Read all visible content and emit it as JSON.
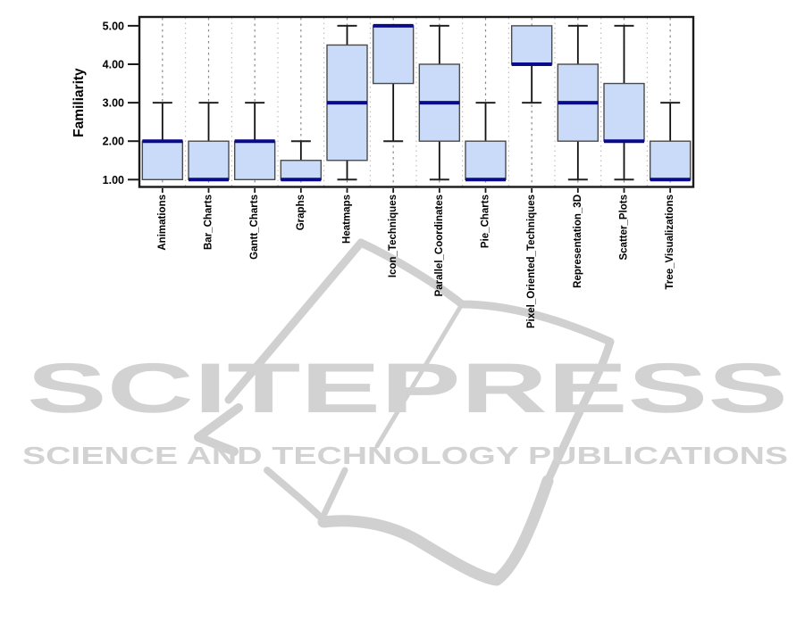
{
  "watermark": {
    "brand": "SCITEPRESS",
    "subtitle": "SCIENCE AND TECHNOLOGY PUBLICATIONS",
    "color": "#d2d2d2",
    "ribbon_color": "#d0d0d0"
  },
  "chart_data": {
    "type": "boxplot",
    "title": "",
    "xlabel": "",
    "ylabel": "Familiarity",
    "ylim": [
      1,
      5
    ],
    "yticks": [
      "1.00",
      "2.00",
      "3.00",
      "4.00",
      "5.00"
    ],
    "grid": "vertical dotted gridlines at category centers and midpoints",
    "legend_position": "none",
    "categories": [
      "Animations",
      "Bar_Charts",
      "Gantt_Charts",
      "Graphs",
      "Heatmaps",
      "Icon_Techniques",
      "Parallel_Coordinates",
      "Pie_Charts",
      "Pixel_Oriented_Techniques",
      "Representation_3D",
      "Scatter_Plots",
      "Tree_Visualizations"
    ],
    "boxes": [
      {
        "label": "Animations",
        "low": 1,
        "q1": 1,
        "median": 2,
        "q3": 2,
        "high": 3
      },
      {
        "label": "Bar_Charts",
        "low": 1,
        "q1": 1,
        "median": 1,
        "q3": 2,
        "high": 3
      },
      {
        "label": "Gantt_Charts",
        "low": 1,
        "q1": 1,
        "median": 2,
        "q3": 2,
        "high": 3
      },
      {
        "label": "Graphs",
        "low": 1,
        "q1": 1,
        "median": 1,
        "q3": 1.5,
        "high": 2
      },
      {
        "label": "Heatmaps",
        "low": 1,
        "q1": 1.5,
        "median": 3,
        "q3": 4.5,
        "high": 5
      },
      {
        "label": "Icon_Techniques",
        "low": 2,
        "q1": 3.5,
        "median": 5,
        "q3": 5,
        "high": 5
      },
      {
        "label": "Parallel_Coordinates",
        "low": 1,
        "q1": 2,
        "median": 3,
        "q3": 4,
        "high": 5
      },
      {
        "label": "Pie_Charts",
        "low": 1,
        "q1": 1,
        "median": 1,
        "q3": 2,
        "high": 3
      },
      {
        "label": "Pixel_Oriented_Techniques",
        "low": 3,
        "q1": 4,
        "median": 4,
        "q3": 5,
        "high": 5
      },
      {
        "label": "Representation_3D",
        "low": 1,
        "q1": 2,
        "median": 3,
        "q3": 4,
        "high": 5
      },
      {
        "label": "Scatter_Plots",
        "low": 1,
        "q1": 2,
        "median": 2,
        "q3": 3.5,
        "high": 5
      },
      {
        "label": "Tree_Visualizations",
        "low": 1,
        "q1": 1,
        "median": 1,
        "q3": 2,
        "high": 3
      }
    ],
    "colors": {
      "box_fill": "#c9dbf8",
      "box_border": "#4a4a4a",
      "median": "#0a0a8c",
      "whisker": "#111111",
      "cap": "#222222",
      "axis": "#1a1a1a",
      "gridline_center": "#8a8a8a",
      "gridline_mid": "#b4b4b4",
      "tick_label": "#000000"
    }
  }
}
